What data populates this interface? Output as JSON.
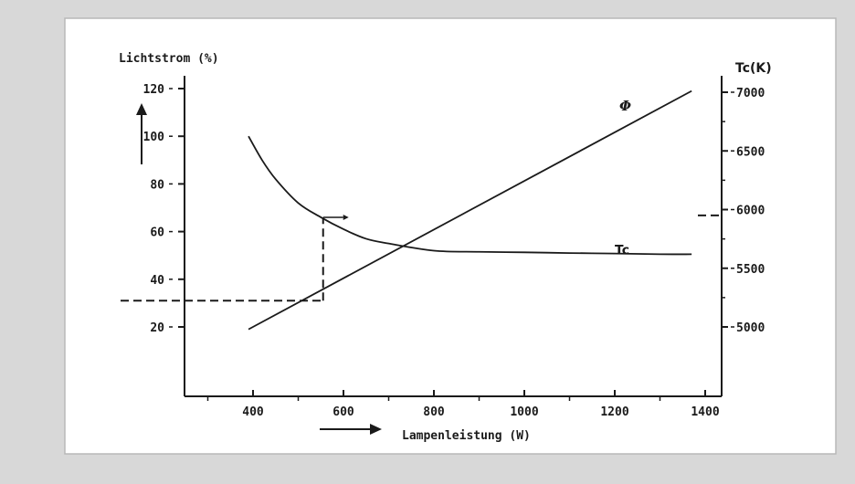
{
  "chart_data": {
    "type": "line",
    "title": "",
    "xlabel": "Lampenleistung (W)",
    "ylabel_left": "Lichtstrom (%)",
    "ylabel_right": "Tc(K)",
    "xlim": [
      200,
      1400
    ],
    "ylim_left": [
      0,
      120
    ],
    "ylim_right": [
      4500,
      7100
    ],
    "x_ticks": [
      400,
      600,
      800,
      1000,
      1200,
      1400
    ],
    "y_ticks_left": [
      20,
      40,
      60,
      80,
      100,
      120
    ],
    "y_ticks_right": [
      5000,
      5500,
      6000,
      6500,
      7000
    ],
    "grid": false,
    "series": [
      {
        "name": "Tc",
        "axis": "left",
        "x": [
          390,
          420,
          450,
          500,
          550,
          600,
          650,
          700,
          800,
          900,
          1000,
          1100,
          1200,
          1300,
          1370
        ],
        "y": [
          100,
          90,
          82,
          72,
          66,
          61,
          57,
          55,
          52,
          51.5,
          51.3,
          51,
          50.8,
          50.5,
          50.5
        ]
      },
      {
        "name": "Φ",
        "axis": "left",
        "x": [
          390,
          1370
        ],
        "y": [
          19,
          119
        ]
      }
    ],
    "annotations": {
      "read_off_x": 555,
      "read_off_left_y": 31,
      "read_off_curve_y": 66,
      "right_axis_marker": 5950
    }
  }
}
